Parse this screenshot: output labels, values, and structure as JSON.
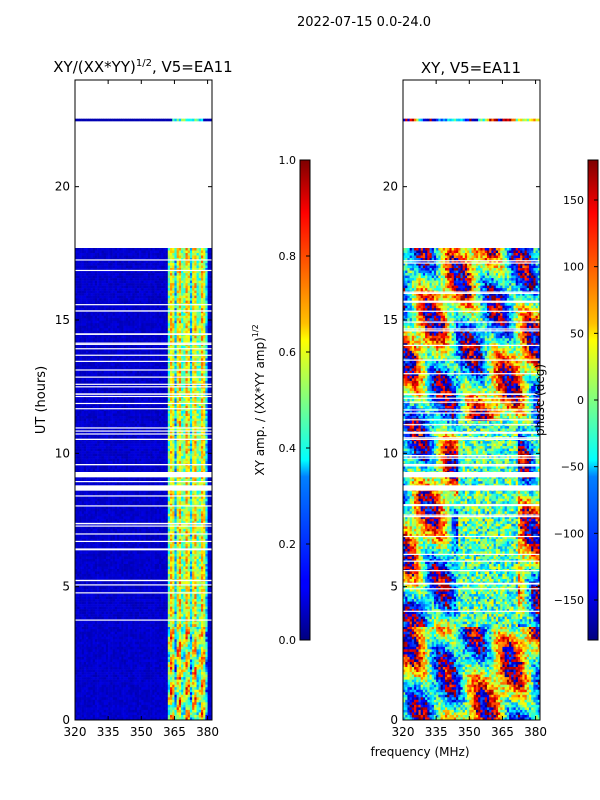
{
  "suptitle": "2022-07-15 0.0-24.0",
  "chart_data": [
    {
      "type": "heatmap",
      "title_prefix": "XY/(XX*YY)",
      "title_exp": "1/2",
      "title_suffix": ", V5=EA11",
      "xlabel": "",
      "ylabel": "UT (hours)",
      "xlim": [
        320,
        382
      ],
      "ylim": [
        0,
        24
      ],
      "xticks": [
        320,
        335,
        350,
        365,
        380
      ],
      "yticks": [
        0,
        5,
        10,
        15,
        20
      ],
      "colorbar": {
        "label_prefix": "XY amp. / (XX*YY amp)",
        "label_exp": "1/2",
        "range": [
          0.0,
          1.0
        ],
        "ticks": [
          "0.0",
          "0.2",
          "0.4",
          "0.6",
          "0.8",
          "1.0"
        ]
      },
      "data_rows_hours": [
        [
          0,
          3.5
        ],
        [
          3.5,
          17.7
        ],
        [
          22.45,
          22.55
        ]
      ],
      "gaps_hours": [
        [
          8.6,
          8.8
        ],
        [
          9.1,
          9.3
        ],
        [
          9.55,
          9.6
        ],
        [
          10.5,
          10.55
        ],
        [
          12.2,
          12.25
        ],
        [
          17.7,
          22.45
        ]
      ]
    },
    {
      "type": "heatmap",
      "title": "XY, V5=EA11",
      "xlabel": "frequency (MHz)",
      "ylabel": "",
      "xlim": [
        320,
        382
      ],
      "ylim": [
        0,
        24
      ],
      "xticks": [
        320,
        335,
        350,
        365,
        380
      ],
      "yticks": [
        0,
        5,
        10,
        15,
        20
      ],
      "colorbar": {
        "label": "phase (deg)",
        "range": [
          -180,
          180
        ],
        "ticks": [
          "150",
          "100",
          "50",
          "0",
          "−50",
          "−100",
          "−150"
        ]
      },
      "data_rows_hours": [
        [
          0,
          3.5
        ],
        [
          3.5,
          17.7
        ],
        [
          22.45,
          22.55
        ]
      ],
      "gaps_hours": [
        [
          8.6,
          8.8
        ],
        [
          9.1,
          9.3
        ],
        [
          9.55,
          9.6
        ],
        [
          10.5,
          10.55
        ],
        [
          12.2,
          12.25
        ],
        [
          17.7,
          22.45
        ]
      ]
    }
  ]
}
